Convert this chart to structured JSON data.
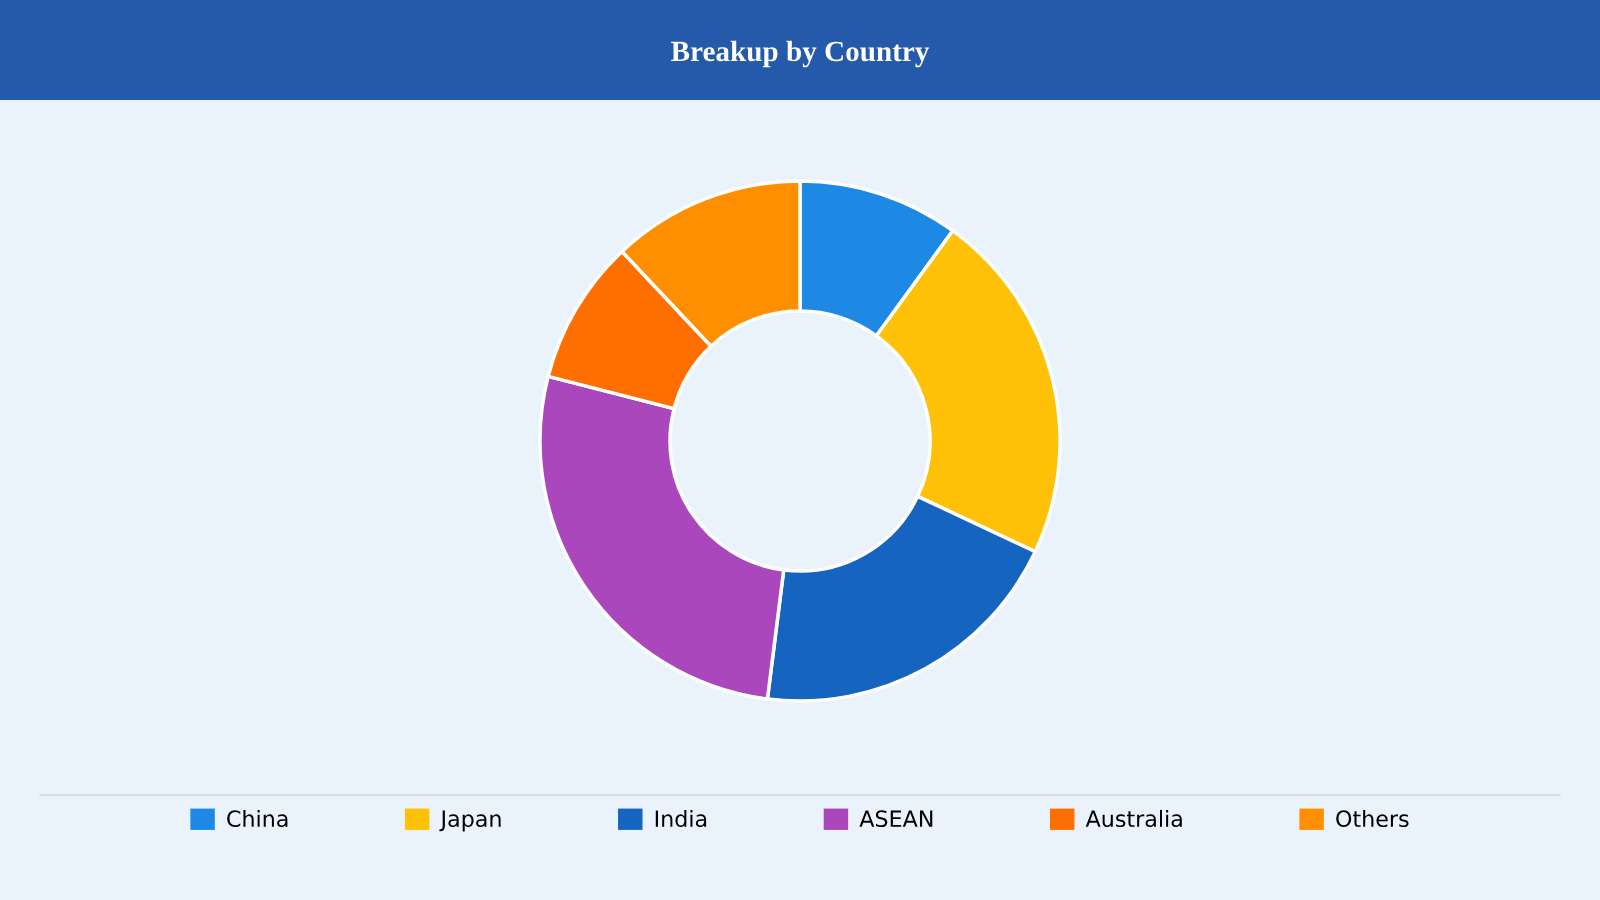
{
  "chart_data": {
    "type": "donut",
    "title": "Breakup by Country",
    "categories": [
      "China",
      "Japan",
      "India",
      "ASEAN",
      "Australia",
      "Others"
    ],
    "values": [
      10,
      22,
      20,
      27,
      9,
      12
    ],
    "colors": [
      "#1e88e5",
      "#ffc107",
      "#1565c0",
      "#ab47bc",
      "#ff6f00",
      "#ff8f00"
    ],
    "legend": "bottom"
  }
}
